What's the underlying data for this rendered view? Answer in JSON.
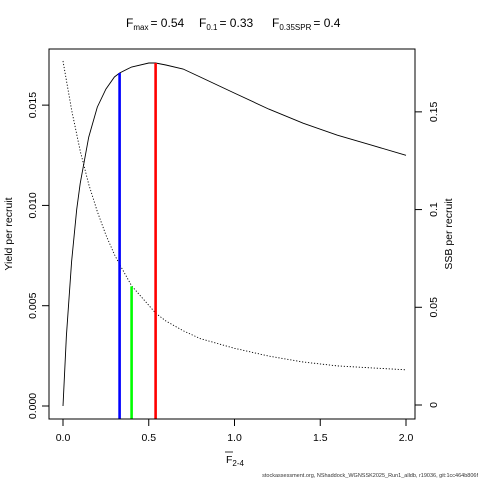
{
  "chart_data": {
    "type": "line",
    "title": {
      "fmax_label": "F",
      "fmax_sub": "max",
      "fmax_value": "= 0.54",
      "f01_label": "F",
      "f01_sub": "0.1",
      "f01_value": "= 0.33",
      "fspr_label": "F",
      "fspr_sub": "0.35SPR",
      "fspr_value": "= 0.4"
    },
    "xlabel_main": "F",
    "xlabel_sub": "2-4",
    "ylabel_left": "Yield per recruit",
    "ylabel_right": "SSB per recruit",
    "xlim": [
      0,
      2.0
    ],
    "ylim_left": [
      0,
      0.0171
    ],
    "ylim_right": [
      0,
      0.175
    ],
    "x_ticks": [
      "0.0",
      "0.5",
      "1.0",
      "1.5",
      "2.0"
    ],
    "y_left_ticks": [
      "0.000",
      "0.005",
      "0.010",
      "0.015"
    ],
    "y_right_ticks": [
      "0",
      "0.05",
      "0.1",
      "0.15"
    ],
    "series": [
      {
        "axis": "left",
        "style": "solid",
        "x": [
          0.0,
          0.02,
          0.05,
          0.08,
          0.1,
          0.15,
          0.2,
          0.25,
          0.3,
          0.33,
          0.4,
          0.5,
          0.54,
          0.6,
          0.7,
          0.8,
          1.0,
          1.2,
          1.4,
          1.6,
          1.8,
          2.0
        ],
        "y": [
          0.0,
          0.0035,
          0.0072,
          0.0098,
          0.0111,
          0.0134,
          0.0149,
          0.0158,
          0.0164,
          0.0166,
          0.0169,
          0.0171,
          0.0171,
          0.017,
          0.0168,
          0.0164,
          0.0156,
          0.0148,
          0.0141,
          0.0135,
          0.013,
          0.0125
        ]
      },
      {
        "axis": "right",
        "style": "dotted",
        "x": [
          0.0,
          0.05,
          0.1,
          0.15,
          0.2,
          0.25,
          0.3,
          0.33,
          0.4,
          0.5,
          0.54,
          0.6,
          0.7,
          0.8,
          1.0,
          1.2,
          1.4,
          1.6,
          1.8,
          2.0
        ],
        "y": [
          0.176,
          0.151,
          0.13,
          0.113,
          0.099,
          0.087,
          0.077,
          0.072,
          0.061,
          0.051,
          0.047,
          0.043,
          0.038,
          0.034,
          0.029,
          0.025,
          0.022,
          0.02,
          0.019,
          0.018
        ]
      }
    ],
    "reference_lines": [
      {
        "name": "F0.1",
        "x": 0.33,
        "y_top": 0.0166,
        "axis": "left",
        "color": "#0000ff"
      },
      {
        "name": "F0.35SPR",
        "x": 0.4,
        "y_top": 0.0607,
        "axis": "right",
        "color": "#00ff00"
      },
      {
        "name": "Fmax",
        "x": 0.54,
        "y_top": 0.0171,
        "axis": "left",
        "color": "#ff0000"
      }
    ]
  },
  "footer": "stockassessment.org, NShaddock_WGNSSK2025_Run1_alldb, r19036, git:1cc464b806f"
}
